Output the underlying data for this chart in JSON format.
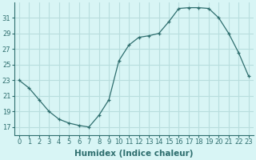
{
  "title": "",
  "xlabel": "Humidex (Indice chaleur)",
  "ylabel": "",
  "x": [
    0,
    1,
    2,
    3,
    4,
    5,
    6,
    7,
    8,
    9,
    10,
    11,
    12,
    13,
    14,
    15,
    16,
    17,
    18,
    19,
    20,
    21,
    22,
    23
  ],
  "y": [
    23,
    22,
    20.5,
    19,
    18,
    17.5,
    17.2,
    17,
    18.5,
    20.5,
    25.5,
    27.5,
    28.5,
    28.7,
    29,
    30.5,
    32.2,
    32.3,
    32.3,
    32.2,
    31,
    29,
    26.5,
    23.5
  ],
  "line_color": "#2e6e6e",
  "marker": "+",
  "bg_color": "#d8f5f5",
  "grid_color": "#b8dede",
  "ylim": [
    16,
    33
  ],
  "yticks": [
    17,
    19,
    21,
    23,
    25,
    27,
    29,
    31
  ],
  "xticks": [
    0,
    1,
    2,
    3,
    4,
    5,
    6,
    7,
    8,
    9,
    10,
    11,
    12,
    13,
    14,
    15,
    16,
    17,
    18,
    19,
    20,
    21,
    22,
    23
  ],
  "tick_fontsize": 6,
  "label_fontsize": 7.5,
  "spine_color": "#2e6e6e"
}
